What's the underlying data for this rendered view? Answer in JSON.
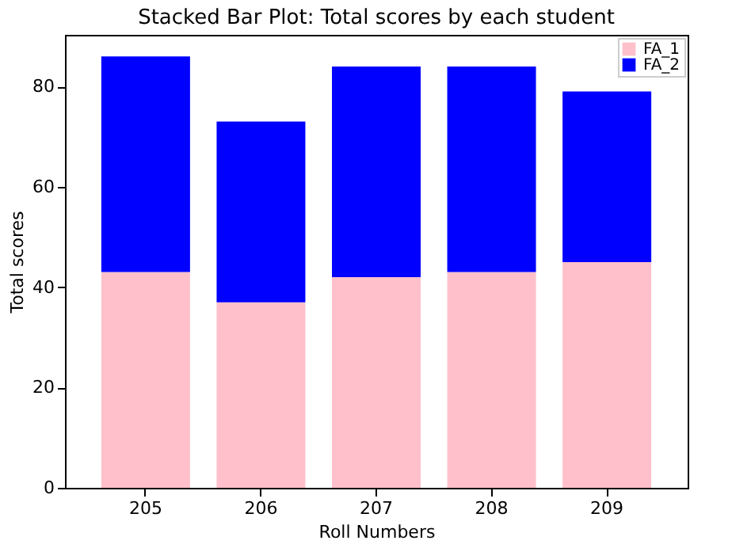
{
  "chart_data": {
    "type": "bar",
    "title": "Stacked Bar Plot: Total scores by each student",
    "xlabel": "Roll Numbers",
    "ylabel": "Total scores",
    "categories": [
      "205",
      "206",
      "207",
      "208",
      "209"
    ],
    "series": [
      {
        "name": "FA_1",
        "color": "#ffc0cb",
        "values": [
          43,
          37,
          42,
          43,
          45
        ]
      },
      {
        "name": "FA_2",
        "color": "#0000ff",
        "values": [
          43,
          36,
          42,
          41,
          34
        ]
      }
    ],
    "stacked": true,
    "ylim": [
      0,
      90.3
    ],
    "yticks": [
      0,
      20,
      40,
      60,
      80
    ],
    "grid": false,
    "legend": "top right"
  }
}
